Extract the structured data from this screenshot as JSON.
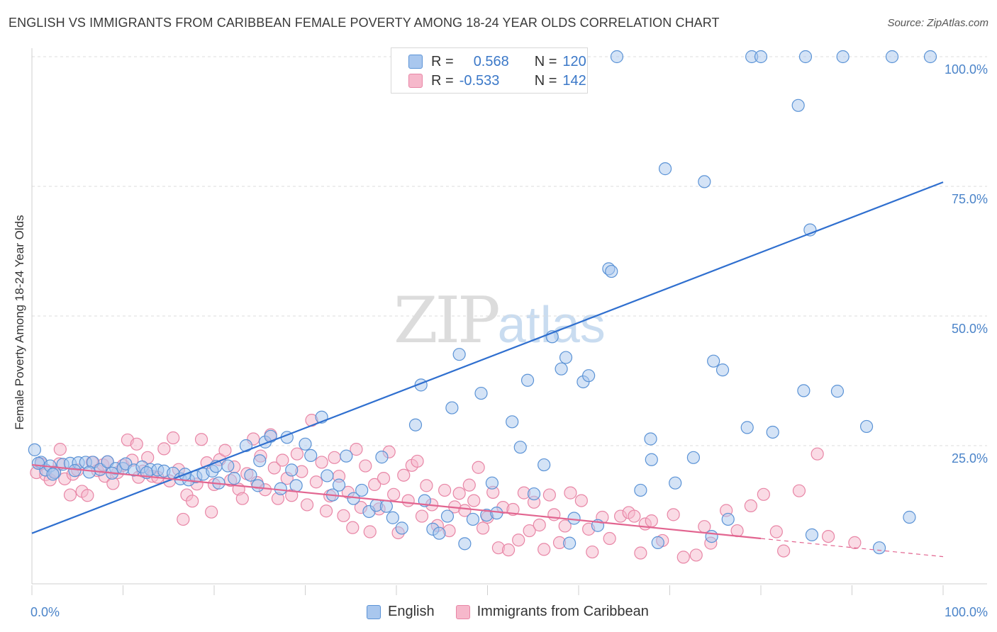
{
  "header": {
    "title": "ENGLISH VS IMMIGRANTS FROM CARIBBEAN FEMALE POVERTY AMONG 18-24 YEAR OLDS CORRELATION CHART",
    "source": "Source: ZipAtlas.com"
  },
  "watermark": {
    "zip": "ZIP",
    "atlas": "atlas"
  },
  "legend": {
    "r_label": "R =",
    "n_label": "N =",
    "english": {
      "r": "0.568",
      "n": "120"
    },
    "caribbean": {
      "r": "-0.533",
      "n": "142"
    }
  },
  "colors": {
    "english_fill": "#a9c7ee",
    "english_stroke": "#5b93d6",
    "english_line": "#2f6fcf",
    "caribbean_fill": "#f6b8cb",
    "caribbean_stroke": "#e886a6",
    "caribbean_line": "#e26590",
    "tick_text": "#4b84c9",
    "grid": "#dddddd"
  },
  "chart_data": {
    "type": "scatter",
    "title": "ENGLISH VS IMMIGRANTS FROM CARIBBEAN FEMALE POVERTY AMONG 18-24 YEAR OLDS CORRELATION CHART",
    "xlabel": "",
    "ylabel": "Female Poverty Among 18-24 Year Olds",
    "xlim": [
      0,
      100
    ],
    "ylim": [
      0,
      100
    ],
    "x_tick_labels": [
      "0.0%",
      "100.0%"
    ],
    "y_ticks": [
      25,
      50,
      75,
      100
    ],
    "y_tick_labels": [
      "25.0%",
      "50.0%",
      "75.0%",
      "100.0%"
    ],
    "grid": true,
    "legend_position": "top-center",
    "series": [
      {
        "name": "English",
        "r": 0.568,
        "n": 120,
        "trend": {
          "x": [
            0,
            100
          ],
          "y": [
            8.1,
            75.8
          ]
        },
        "points": [
          [
            0.3,
            24.2
          ],
          [
            1,
            21.8
          ],
          [
            1.5,
            20.3
          ],
          [
            2,
            21.1
          ],
          [
            2.5,
            19.8
          ],
          [
            3.4,
            21.4
          ],
          [
            4.2,
            21.6
          ],
          [
            5.1,
            21.7
          ],
          [
            5.9,
            21.8
          ],
          [
            6.7,
            21.8
          ],
          [
            7.5,
            20.4
          ],
          [
            8.3,
            21.9
          ],
          [
            9.2,
            20.6
          ],
          [
            10,
            20.6
          ],
          [
            10.3,
            21.5
          ],
          [
            11.2,
            20.3
          ],
          [
            12.1,
            20.9
          ],
          [
            13,
            20.4
          ],
          [
            13.8,
            20.3
          ],
          [
            14.5,
            20.1
          ],
          [
            15.5,
            19.7
          ],
          [
            16.3,
            18.6
          ],
          [
            17.2,
            18.4
          ],
          [
            18,
            19
          ],
          [
            18.8,
            19.5
          ],
          [
            19.8,
            20.1
          ],
          [
            20.5,
            17.8
          ],
          [
            21.5,
            21.1
          ],
          [
            22.2,
            18.7
          ],
          [
            23.5,
            25
          ],
          [
            24,
            19.3
          ],
          [
            25,
            22.1
          ],
          [
            25.6,
            25.7
          ],
          [
            26.2,
            26.8
          ],
          [
            27.3,
            16.7
          ],
          [
            28,
            26.6
          ],
          [
            28.5,
            20.3
          ],
          [
            29,
            17.3
          ],
          [
            30,
            25.3
          ],
          [
            30.6,
            23.1
          ],
          [
            31.8,
            30.5
          ],
          [
            32.4,
            19.2
          ],
          [
            33.7,
            17.4
          ],
          [
            34.5,
            23
          ],
          [
            35.3,
            14.8
          ],
          [
            36.2,
            16.4
          ],
          [
            37,
            12.3
          ],
          [
            37.8,
            13.5
          ],
          [
            38.4,
            22.8
          ],
          [
            39.6,
            11.1
          ],
          [
            40.6,
            9.1
          ],
          [
            42.1,
            29
          ],
          [
            42.7,
            36.7
          ],
          [
            43.1,
            14.4
          ],
          [
            44,
            8.9
          ],
          [
            44.7,
            8.1
          ],
          [
            45.6,
            11.4
          ],
          [
            46.1,
            32.3
          ],
          [
            46.9,
            42.6
          ],
          [
            47.5,
            6.1
          ],
          [
            48.4,
            10.8
          ],
          [
            49.3,
            35.1
          ],
          [
            49.9,
            11.6
          ],
          [
            50.5,
            17.8
          ],
          [
            51,
            12
          ],
          [
            52.7,
            29.6
          ],
          [
            53.6,
            24.7
          ],
          [
            54.4,
            37.6
          ],
          [
            55.1,
            15.7
          ],
          [
            56.2,
            21.3
          ],
          [
            57.1,
            46
          ],
          [
            58.1,
            39.8
          ],
          [
            58.6,
            42
          ],
          [
            59,
            6.2
          ],
          [
            59.5,
            11
          ],
          [
            60.5,
            37.3
          ],
          [
            61.1,
            38.5
          ],
          [
            62.1,
            9.6
          ],
          [
            63.3,
            59.1
          ],
          [
            63.6,
            58.6
          ],
          [
            64.2,
            100
          ],
          [
            66.8,
            16.4
          ],
          [
            67.9,
            26.3
          ],
          [
            68,
            22.3
          ],
          [
            68.7,
            6.3
          ],
          [
            69.5,
            78.4
          ],
          [
            70.6,
            17.8
          ],
          [
            72.6,
            22.7
          ],
          [
            73.8,
            75.9
          ],
          [
            74.6,
            7.5
          ],
          [
            74.8,
            41.3
          ],
          [
            75.8,
            39.6
          ],
          [
            76.4,
            10.8
          ],
          [
            78.5,
            28.5
          ],
          [
            79,
            100
          ],
          [
            80,
            100
          ],
          [
            81.3,
            27.6
          ],
          [
            84.1,
            90.6
          ],
          [
            84.9,
            100
          ],
          [
            84.7,
            35.6
          ],
          [
            85.4,
            66.6
          ],
          [
            85.6,
            7.8
          ],
          [
            88.4,
            35.5
          ],
          [
            89,
            100
          ],
          [
            91.6,
            28.7
          ],
          [
            93,
            5.3
          ],
          [
            94.4,
            100
          ],
          [
            96.3,
            11.2
          ],
          [
            98.6,
            100
          ],
          [
            0.7,
            21.6
          ],
          [
            2.3,
            19.5
          ],
          [
            4.7,
            20.2
          ],
          [
            6.3,
            19.9
          ],
          [
            8.8,
            19.7
          ],
          [
            12.6,
            19.8
          ],
          [
            16.8,
            19.5
          ],
          [
            20.2,
            21
          ],
          [
            24.8,
            17.3
          ],
          [
            33,
            15.5
          ],
          [
            38.9,
            13.3
          ]
        ]
      },
      {
        "name": "Immigrants from Caribbean",
        "r": -0.533,
        "n": 142,
        "trend": {
          "x": [
            0,
            80
          ],
          "y": [
            21.3,
            7.1
          ]
        },
        "trend_dashed": {
          "x": [
            80,
            100
          ],
          "y": [
            7.1,
            3.6
          ]
        },
        "points": [
          [
            0.5,
            19.8
          ],
          [
            1,
            21.5
          ],
          [
            1.5,
            19.4
          ],
          [
            2,
            18.4
          ],
          [
            2.5,
            20
          ],
          [
            3,
            21.5
          ],
          [
            3.1,
            24.3
          ],
          [
            3.6,
            18.6
          ],
          [
            4.2,
            15.5
          ],
          [
            4.5,
            19.5
          ],
          [
            5,
            20.3
          ],
          [
            5.5,
            16.2
          ],
          [
            6.1,
            15.4
          ],
          [
            6.6,
            21.8
          ],
          [
            7.2,
            20.2
          ],
          [
            7.8,
            21.3
          ],
          [
            8,
            19.1
          ],
          [
            8.3,
            21.9
          ],
          [
            8.9,
            17.7
          ],
          [
            9.4,
            19.8
          ],
          [
            10,
            21.2
          ],
          [
            10.5,
            26.1
          ],
          [
            11,
            22.2
          ],
          [
            11.5,
            25.3
          ],
          [
            11.7,
            18.9
          ],
          [
            12.2,
            20.1
          ],
          [
            12.7,
            22.7
          ],
          [
            13.2,
            19.1
          ],
          [
            13.8,
            18.9
          ],
          [
            14.5,
            24.4
          ],
          [
            15.1,
            18.2
          ],
          [
            15.5,
            26.5
          ],
          [
            16.1,
            20.4
          ],
          [
            16.6,
            10.8
          ],
          [
            17,
            15.5
          ],
          [
            17.6,
            14.3
          ],
          [
            18.1,
            17.6
          ],
          [
            18.6,
            26.2
          ],
          [
            19.2,
            21.7
          ],
          [
            19.7,
            12.2
          ],
          [
            20,
            17.5
          ],
          [
            20.6,
            22.3
          ],
          [
            21.2,
            24.1
          ],
          [
            21.8,
            18.3
          ],
          [
            22.2,
            20.9
          ],
          [
            22.7,
            16.6
          ],
          [
            23.1,
            14.8
          ],
          [
            23.6,
            19.6
          ],
          [
            24.3,
            26.3
          ],
          [
            24.7,
            17.9
          ],
          [
            25.1,
            23
          ],
          [
            25.6,
            16.5
          ],
          [
            26.2,
            27.1
          ],
          [
            26.6,
            20.7
          ],
          [
            27,
            14.8
          ],
          [
            27.5,
            22.2
          ],
          [
            28,
            18.7
          ],
          [
            28.5,
            15.4
          ],
          [
            29.1,
            23.4
          ],
          [
            29.6,
            20
          ],
          [
            30.2,
            13.6
          ],
          [
            30.7,
            29.9
          ],
          [
            31.2,
            18
          ],
          [
            31.8,
            21.8
          ],
          [
            32.3,
            12.4
          ],
          [
            32.7,
            15.3
          ],
          [
            33.2,
            22.7
          ],
          [
            33.7,
            19.1
          ],
          [
            34.2,
            11.5
          ],
          [
            34.7,
            16
          ],
          [
            35.2,
            9.2
          ],
          [
            35.6,
            24.3
          ],
          [
            36.1,
            13.1
          ],
          [
            36.6,
            21.1
          ],
          [
            37.1,
            8.4
          ],
          [
            37.6,
            17.5
          ],
          [
            38.1,
            12.8
          ],
          [
            38.6,
            18.7
          ],
          [
            39.2,
            23.8
          ],
          [
            39.7,
            15.6
          ],
          [
            40.2,
            8.2
          ],
          [
            40.8,
            19.3
          ],
          [
            41.3,
            14.4
          ],
          [
            41.7,
            21.2
          ],
          [
            42.3,
            22
          ],
          [
            42.8,
            11.4
          ],
          [
            43.3,
            17.3
          ],
          [
            43.9,
            13.6
          ],
          [
            44.5,
            9.6
          ],
          [
            45.3,
            16.4
          ],
          [
            45.8,
            8.6
          ],
          [
            46.4,
            13.2
          ],
          [
            46.9,
            15.8
          ],
          [
            47.5,
            12.5
          ],
          [
            48,
            17.4
          ],
          [
            48.5,
            14.4
          ],
          [
            49,
            20.8
          ],
          [
            49.5,
            9.1
          ],
          [
            50,
            11.2
          ],
          [
            50.6,
            16
          ],
          [
            51.2,
            5.3
          ],
          [
            51.7,
            13.1
          ],
          [
            52.3,
            4.9
          ],
          [
            52.8,
            12.7
          ],
          [
            53.4,
            6.8
          ],
          [
            54,
            15.9
          ],
          [
            54.6,
            8.6
          ],
          [
            55.1,
            14.1
          ],
          [
            55.7,
            9.7
          ],
          [
            56.2,
            5
          ],
          [
            56.8,
            15.5
          ],
          [
            57.3,
            11.7
          ],
          [
            57.9,
            6.3
          ],
          [
            58.5,
            9.5
          ],
          [
            59.1,
            15.9
          ],
          [
            60.3,
            14.4
          ],
          [
            61.1,
            8.9
          ],
          [
            61.5,
            4.5
          ],
          [
            62.6,
            11.2
          ],
          [
            63.4,
            7.1
          ],
          [
            64.6,
            11.4
          ],
          [
            65.5,
            12.1
          ],
          [
            66.1,
            11.4
          ],
          [
            66.8,
            4.3
          ],
          [
            67.3,
            9.9
          ],
          [
            68,
            10.5
          ],
          [
            69.2,
            6.7
          ],
          [
            70.4,
            11.7
          ],
          [
            71.5,
            3.5
          ],
          [
            72.9,
            3.9
          ],
          [
            73.8,
            9.4
          ],
          [
            74.5,
            6.2
          ],
          [
            76.2,
            12.5
          ],
          [
            77.4,
            8.6
          ],
          [
            78.9,
            13.4
          ],
          [
            80.3,
            15.6
          ],
          [
            81.7,
            8.4
          ],
          [
            82.5,
            4.7
          ],
          [
            84.2,
            16.3
          ],
          [
            86.2,
            23.4
          ],
          [
            87.4,
            7.5
          ],
          [
            90.3,
            6.3
          ]
        ]
      }
    ]
  },
  "bottom_legend": {
    "english_label": "English",
    "caribbean_label": "Immigrants from Caribbean"
  }
}
